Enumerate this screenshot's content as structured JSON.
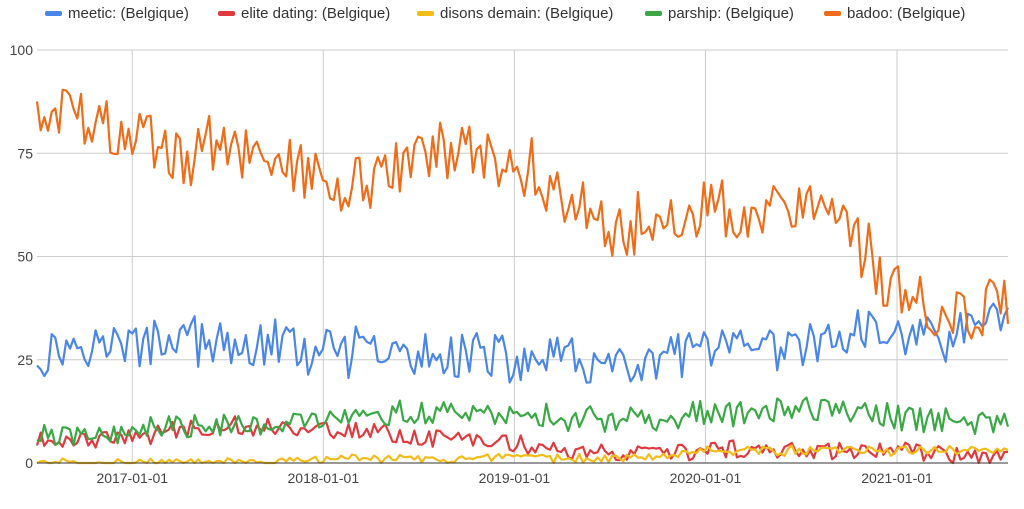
{
  "chart_data": {
    "type": "line",
    "xlabel": "",
    "ylabel": "",
    "ylim": [
      0,
      100
    ],
    "y_ticks": [
      0,
      25,
      50,
      75,
      100
    ],
    "x_range": [
      "2016-07-03",
      "2021-08-01"
    ],
    "x_ticks": [
      "2017-01-01",
      "2018-01-01",
      "2019-01-01",
      "2020-01-01",
      "2021-01-01"
    ],
    "x_tick_labels": [
      "2017-01-01",
      "2018-01-01",
      "2019-01-01",
      "2020-01-01",
      "2021-01-01"
    ],
    "grid": true,
    "legend_position": "top",
    "sampling": "weekly",
    "series": [
      {
        "name": "meetic: (Belgique)",
        "color": "#4a86e8",
        "points": [
          [
            "2016-07",
            26
          ],
          [
            "2016-10",
            30
          ],
          [
            "2017-01",
            28
          ],
          [
            "2017-04",
            31
          ],
          [
            "2017-07",
            27
          ],
          [
            "2017-10",
            29
          ],
          [
            "2018-01",
            26
          ],
          [
            "2018-04",
            27
          ],
          [
            "2018-07",
            25
          ],
          [
            "2018-10",
            27
          ],
          [
            "2019-01",
            24
          ],
          [
            "2019-04",
            26
          ],
          [
            "2019-07",
            22
          ],
          [
            "2019-10",
            24
          ],
          [
            "2020-01",
            28
          ],
          [
            "2020-04",
            26
          ],
          [
            "2020-07",
            28
          ],
          [
            "2020-10",
            31
          ],
          [
            "2021-01",
            32
          ],
          [
            "2021-04",
            30
          ],
          [
            "2021-07",
            35
          ]
        ]
      },
      {
        "name": "elite dating: (Belgique)",
        "color": "#e0393e",
        "points": [
          [
            "2016-07",
            5
          ],
          [
            "2016-10",
            6
          ],
          [
            "2017-01",
            6
          ],
          [
            "2017-04",
            8
          ],
          [
            "2017-07",
            9
          ],
          [
            "2017-10",
            9
          ],
          [
            "2018-01",
            8
          ],
          [
            "2018-04",
            8
          ],
          [
            "2018-07",
            6
          ],
          [
            "2018-10",
            6
          ],
          [
            "2019-01",
            5
          ],
          [
            "2019-04",
            3
          ],
          [
            "2019-07",
            2
          ],
          [
            "2019-10",
            2
          ],
          [
            "2020-01",
            3
          ],
          [
            "2020-04",
            3
          ],
          [
            "2020-07",
            3
          ],
          [
            "2020-10",
            3
          ],
          [
            "2021-01",
            3
          ],
          [
            "2021-04",
            2
          ],
          [
            "2021-07",
            2
          ]
        ]
      },
      {
        "name": "disons demain: (Belgique)",
        "color": "#f2bc19",
        "points": [
          [
            "2016-07",
            0
          ],
          [
            "2016-10",
            0
          ],
          [
            "2017-01",
            0
          ],
          [
            "2017-04",
            0
          ],
          [
            "2017-07",
            0
          ],
          [
            "2017-10",
            0
          ],
          [
            "2018-01",
            1
          ],
          [
            "2018-04",
            1
          ],
          [
            "2018-07",
            1
          ],
          [
            "2018-10",
            1
          ],
          [
            "2019-01",
            1
          ],
          [
            "2019-04",
            1
          ],
          [
            "2019-07",
            1
          ],
          [
            "2019-10",
            2
          ],
          [
            "2020-01",
            3
          ],
          [
            "2020-04",
            3
          ],
          [
            "2020-07",
            3
          ],
          [
            "2020-10",
            3
          ],
          [
            "2021-01",
            3
          ],
          [
            "2021-04",
            3
          ],
          [
            "2021-07",
            3
          ]
        ]
      },
      {
        "name": "parship: (Belgique)",
        "color": "#39a845",
        "points": [
          [
            "2016-07",
            6
          ],
          [
            "2016-10",
            7
          ],
          [
            "2017-01",
            8
          ],
          [
            "2017-04",
            9
          ],
          [
            "2017-07",
            10
          ],
          [
            "2017-10",
            10
          ],
          [
            "2018-01",
            10
          ],
          [
            "2018-04",
            11
          ],
          [
            "2018-07",
            12
          ],
          [
            "2018-10",
            12
          ],
          [
            "2019-01",
            12
          ],
          [
            "2019-04",
            11
          ],
          [
            "2019-07",
            10
          ],
          [
            "2019-10",
            11
          ],
          [
            "2020-01",
            12
          ],
          [
            "2020-04",
            12
          ],
          [
            "2020-07",
            13
          ],
          [
            "2020-10",
            13
          ],
          [
            "2021-01",
            11
          ],
          [
            "2021-04",
            10
          ],
          [
            "2021-07",
            10
          ]
        ]
      },
      {
        "name": "badoo: (Belgique)",
        "color": "#ef6c18",
        "points": [
          [
            "2016-07",
            88
          ],
          [
            "2016-10",
            82
          ],
          [
            "2017-01",
            80
          ],
          [
            "2017-04",
            74
          ],
          [
            "2017-07",
            78
          ],
          [
            "2017-10",
            74
          ],
          [
            "2018-01",
            70
          ],
          [
            "2018-04",
            68
          ],
          [
            "2018-07",
            75
          ],
          [
            "2018-10",
            76
          ],
          [
            "2019-01",
            74
          ],
          [
            "2019-04",
            64
          ],
          [
            "2019-07",
            58
          ],
          [
            "2019-10",
            58
          ],
          [
            "2020-01",
            64
          ],
          [
            "2020-04",
            60
          ],
          [
            "2020-07",
            60
          ],
          [
            "2020-10",
            56
          ],
          [
            "2021-01",
            40
          ],
          [
            "2021-04",
            35
          ],
          [
            "2021-07",
            38
          ]
        ]
      }
    ]
  }
}
